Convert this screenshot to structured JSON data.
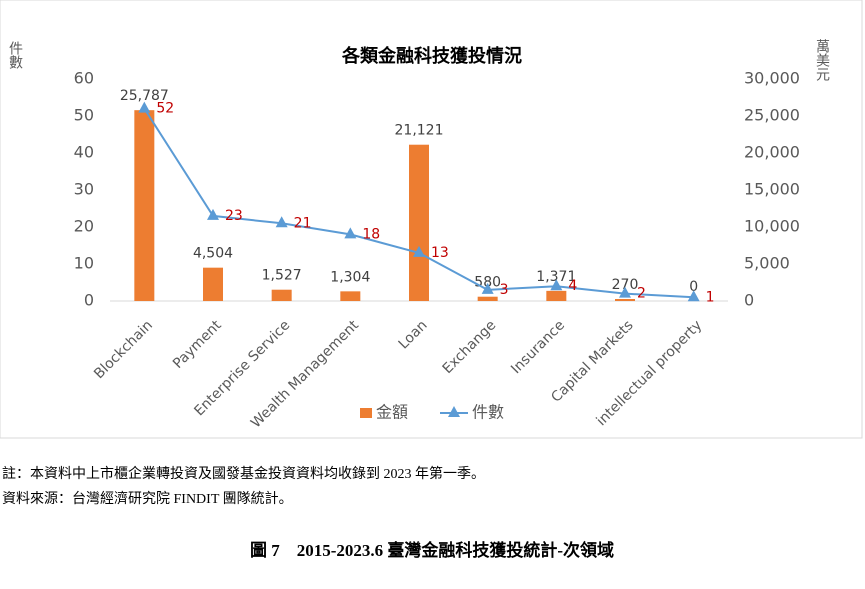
{
  "chart_data": {
    "type": "combo",
    "title": "各類金融科技獲投情況",
    "y_label": "件數",
    "y2_label": "萬美元",
    "categories": [
      "Blockchain",
      "Payment",
      "Enterprise Service",
      "Wealth Management",
      "Loan",
      "Exchange",
      "Insurance",
      "Capital Markets",
      "intellectual property"
    ],
    "series": [
      {
        "name": "金額",
        "type": "bar",
        "axis": "y2",
        "color": "#ed7d31",
        "values": [
          25787,
          4504,
          1527,
          1304,
          21121,
          580,
          1371,
          270,
          0
        ],
        "value_labels": [
          "25,787",
          "4,504",
          "1,527",
          "1,304",
          "21,121",
          "580",
          "1,371",
          "270",
          "0"
        ]
      },
      {
        "name": "件數",
        "type": "line",
        "color": "#5b9bd5",
        "label_color": "#c00000",
        "values": [
          52,
          23,
          21,
          18,
          13,
          3,
          4,
          2,
          1
        ]
      }
    ],
    "ylim": [
      0,
      60
    ],
    "yticks": [
      0,
      10,
      20,
      30,
      40,
      50,
      60
    ],
    "y2lim": [
      0,
      30000
    ],
    "y2ticks": [
      0,
      {
        "value": 5000,
        "label": "5,000"
      },
      {
        "value": 10000,
        "label": "10,000"
      },
      {
        "value": 15000,
        "label": "15,000"
      },
      {
        "value": 20000,
        "label": "20,000"
      },
      {
        "value": 25000,
        "label": "25,000"
      },
      {
        "value": 30000,
        "label": "30,000"
      }
    ],
    "legend": "bottom",
    "grid": false
  },
  "notes": [
    "註：本資料中上市櫃企業轉投資及國發基金投資資料均收錄到 2023 年第一季。",
    "資料來源：台灣經濟研究院 FINDIT 團隊統計。"
  ],
  "caption": "圖 7　2015-2023.6 臺灣金融科技獲投統計-次領域"
}
